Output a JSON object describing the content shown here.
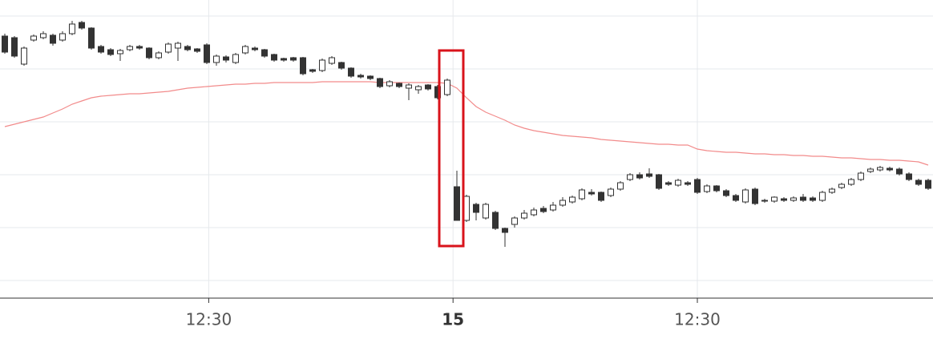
{
  "chart_data": {
    "type": "candlestick",
    "xlim": [
      -0.5,
      96.5
    ],
    "ylim": [
      0,
      372
    ],
    "ygrid": [
      352,
      286,
      220,
      154,
      88,
      22
    ],
    "grid": true,
    "xticks": [
      {
        "value": 21.2,
        "label": "12:30"
      },
      {
        "value": 46.6,
        "label": "15",
        "bold": true
      },
      {
        "value": 72,
        "label": "12:30"
      }
    ],
    "up_color": "#ffffff",
    "down_color": "#333333",
    "open": [
      327,
      325,
      292,
      322,
      325,
      328,
      322,
      330,
      344,
      337,
      314,
      310,
      305,
      310,
      314,
      312,
      300,
      307,
      312,
      314,
      311,
      316,
      294,
      301,
      294,
      306,
      312,
      310,
      304,
      299,
      300,
      300,
      285,
      284,
      293,
      294,
      287,
      278,
      277,
      274,
      265,
      268,
      262,
      260,
      266,
      264,
      254,
      139,
      97,
      117,
      100,
      107,
      87,
      92,
      100,
      104,
      112,
      110,
      116,
      120,
      124,
      132,
      132,
      128,
      136,
      148,
      154,
      155,
      154,
      144,
      141,
      144,
      148,
      133,
      140,
      134,
      128,
      120,
      136,
      122,
      121,
      124,
      122,
      126,
      125,
      122,
      132,
      138,
      142,
      148,
      158,
      160,
      162,
      161,
      155,
      147,
      147
    ],
    "high": [
      330,
      327,
      314,
      329,
      333,
      330,
      333,
      346,
      346,
      338,
      316,
      312,
      311,
      316,
      316,
      313,
      308,
      319,
      320,
      316,
      312,
      318,
      304,
      303,
      306,
      316,
      314,
      311,
      305,
      300,
      301,
      301,
      286,
      299,
      302,
      295,
      288,
      280,
      278,
      275,
      272,
      269,
      268,
      266,
      267,
      266,
      274,
      159,
      129,
      119,
      119,
      109,
      88,
      102,
      110,
      113,
      115,
      120,
      126,
      128,
      137,
      136,
      133,
      138,
      146,
      156,
      157,
      162,
      155,
      146,
      149,
      146,
      150,
      142,
      141,
      136,
      130,
      137,
      138,
      124,
      127,
      126,
      127,
      130,
      127,
      134,
      138,
      144,
      150,
      158,
      163,
      165,
      164,
      163,
      157,
      149,
      149
    ],
    "low": [
      305,
      300,
      290,
      320,
      323,
      315,
      320,
      328,
      335,
      310,
      305,
      302,
      296,
      308,
      310,
      298,
      298,
      305,
      296,
      308,
      306,
      292,
      290,
      294,
      292,
      304,
      308,
      300,
      295,
      295,
      295,
      278,
      281,
      282,
      291,
      285,
      275,
      274,
      272,
      262,
      263,
      262,
      247,
      255,
      259,
      248,
      252,
      97,
      95,
      97,
      98,
      85,
      64,
      88,
      98,
      102,
      106,
      108,
      114,
      118,
      122,
      128,
      120,
      126,
      134,
      146,
      148,
      150,
      135,
      140,
      139,
      140,
      130,
      131,
      132,
      126,
      120,
      118,
      116,
      119,
      119,
      120,
      120,
      120,
      120,
      120,
      130,
      136,
      140,
      146,
      156,
      158,
      158,
      153,
      146,
      140,
      135
    ],
    "close": [
      307,
      302,
      312,
      327,
      330,
      318,
      330,
      342,
      337,
      312,
      307,
      304,
      309,
      314,
      312,
      300,
      306,
      317,
      318,
      310,
      308,
      294,
      302,
      297,
      304,
      314,
      310,
      302,
      297,
      297,
      297,
      280,
      283,
      297,
      300,
      287,
      277,
      276,
      274,
      264,
      270,
      264,
      266,
      264,
      261,
      250,
      272,
      97,
      127,
      107,
      117,
      87,
      82,
      100,
      106,
      110,
      108,
      116,
      122,
      126,
      135,
      130,
      122,
      136,
      144,
      154,
      150,
      152,
      137,
      142,
      147,
      142,
      132,
      140,
      134,
      128,
      122,
      135,
      118,
      121,
      126,
      122,
      125,
      122,
      122,
      132,
      136,
      142,
      148,
      156,
      161,
      163,
      160,
      155,
      148,
      142,
      137
    ],
    "ma": {
      "color": "#f28b8b",
      "values": [
        214,
        217,
        220,
        223,
        226,
        231,
        236,
        242,
        246,
        250,
        252,
        253,
        254,
        255,
        255,
        256,
        257,
        258,
        260,
        262,
        263,
        264,
        265,
        266,
        267,
        267,
        268,
        268,
        269,
        269,
        269,
        269,
        269,
        270,
        270,
        270,
        270,
        270,
        270,
        269,
        269,
        269,
        269,
        269,
        269,
        269,
        268,
        262,
        250,
        239,
        232,
        227,
        222,
        216,
        212,
        209,
        207,
        205,
        203,
        202,
        201,
        200,
        198,
        197,
        196,
        195,
        194,
        193,
        192,
        192,
        191,
        191,
        186,
        184,
        183,
        182,
        182,
        181,
        180,
        180,
        179,
        179,
        178,
        178,
        177,
        177,
        176,
        175,
        175,
        174,
        173,
        173,
        172,
        172,
        171,
        170,
        166
      ]
    }
  }
}
